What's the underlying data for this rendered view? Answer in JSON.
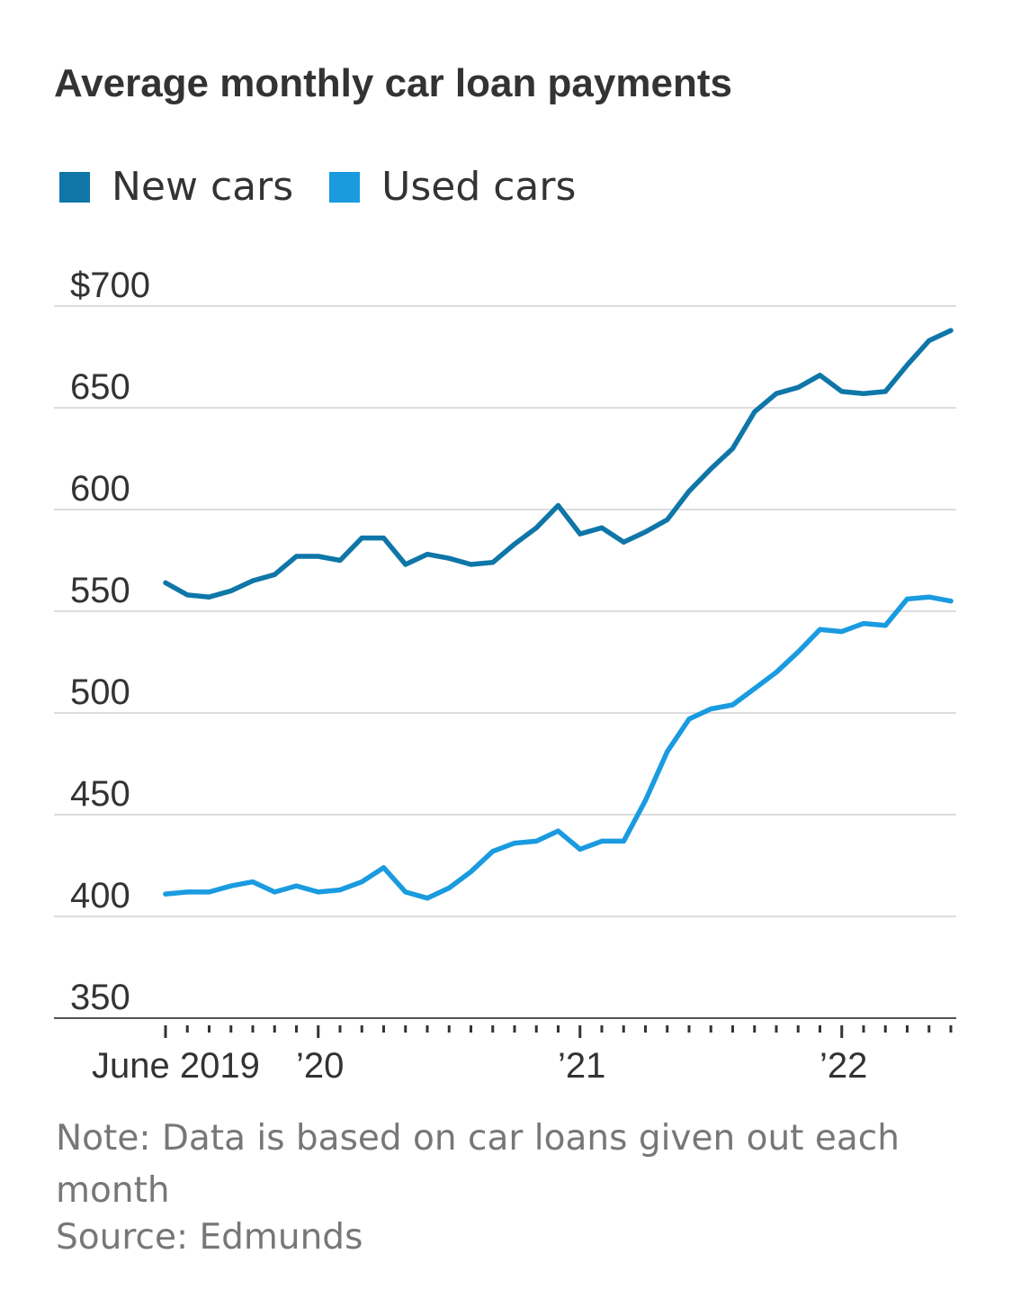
{
  "chart_data": {
    "type": "line",
    "title": "Average monthly car loan payments",
    "xlabel": "",
    "ylabel": "",
    "ylim": [
      350,
      700
    ],
    "yticks": [
      {
        "value": 700,
        "label": "$700"
      },
      {
        "value": 650,
        "label": "650"
      },
      {
        "value": 600,
        "label": "600"
      },
      {
        "value": 550,
        "label": "550"
      },
      {
        "value": 500,
        "label": "500"
      },
      {
        "value": 450,
        "label": "450"
      },
      {
        "value": 400,
        "label": "400"
      },
      {
        "value": 350,
        "label": "350"
      }
    ],
    "x": [
      "2019-06",
      "2019-07",
      "2019-08",
      "2019-09",
      "2019-10",
      "2019-11",
      "2019-12",
      "2020-01",
      "2020-02",
      "2020-03",
      "2020-04",
      "2020-05",
      "2020-06",
      "2020-07",
      "2020-08",
      "2020-09",
      "2020-10",
      "2020-11",
      "2020-12",
      "2021-01",
      "2021-02",
      "2021-03",
      "2021-04",
      "2021-05",
      "2021-06",
      "2021-07",
      "2021-08",
      "2021-09",
      "2021-10",
      "2021-11",
      "2021-12",
      "2022-01",
      "2022-02",
      "2022-03",
      "2022-04",
      "2022-05",
      "2022-06"
    ],
    "xticks": [
      {
        "x": "2019-06",
        "label": "June 2019"
      },
      {
        "x": "2020-01",
        "label": "’20"
      },
      {
        "x": "2021-01",
        "label": "’21"
      },
      {
        "x": "2022-01",
        "label": "’22"
      }
    ],
    "series": [
      {
        "name": "New cars",
        "color": "#0f76a8",
        "values": [
          564,
          558,
          557,
          560,
          565,
          568,
          577,
          577,
          575,
          586,
          586,
          573,
          578,
          576,
          573,
          574,
          583,
          591,
          602,
          588,
          591,
          584,
          589,
          595,
          609,
          620,
          630,
          648,
          657,
          660,
          666,
          658,
          657,
          658,
          671,
          683,
          688
        ]
      },
      {
        "name": "Used cars",
        "color": "#1a9be0",
        "values": [
          411,
          412,
          412,
          415,
          417,
          412,
          415,
          412,
          413,
          417,
          424,
          412,
          409,
          414,
          422,
          432,
          436,
          437,
          442,
          433,
          437,
          437,
          457,
          481,
          497,
          502,
          504,
          512,
          520,
          530,
          541,
          540,
          544,
          543,
          556,
          557,
          555
        ]
      }
    ],
    "grid": true,
    "legend": "top-left"
  },
  "note": "Note: Data is based on car loans given out each month",
  "source": "Source: Edmunds"
}
